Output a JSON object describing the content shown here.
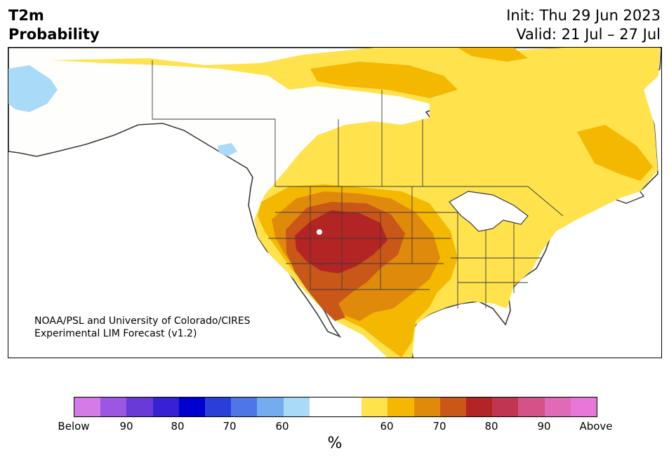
{
  "header": {
    "variable": "T2m",
    "quantity": "Probability",
    "init": "Init: Thu 29 Jun 2023",
    "valid": "Valid: 21 Jul – 27 Jul"
  },
  "credit": {
    "line1": "NOAA/PSL and University of Colorado/CIRES",
    "line2": "Experimental LIM Forecast (v1.2)"
  },
  "colorbar": {
    "unit": "%",
    "tick_labels": [
      "Below",
      "90",
      "80",
      "70",
      "60",
      "60",
      "70",
      "80",
      "90",
      "Above"
    ],
    "colors": [
      "#d67ae8",
      "#9b57e2",
      "#6a3ad8",
      "#3522d2",
      "#0000d0",
      "#2a3ed8",
      "#4f76e6",
      "#74acf0",
      "#a9daf8",
      "#ffffff",
      "#ffffff",
      "#ffe24c",
      "#f4b800",
      "#e08a0c",
      "#c85718",
      "#b32424",
      "#c13552",
      "#d45288",
      "#de6ab8",
      "#e877da"
    ]
  },
  "map": {
    "region": "North America",
    "categories": {
      "above_50_60": "#ffe24c",
      "above_60_70": "#f4b800",
      "above_70_80": "#e08a0c",
      "above_80_90": "#c85718",
      "above_90": "#b32424",
      "below_50_60": "#a9daf8"
    }
  }
}
